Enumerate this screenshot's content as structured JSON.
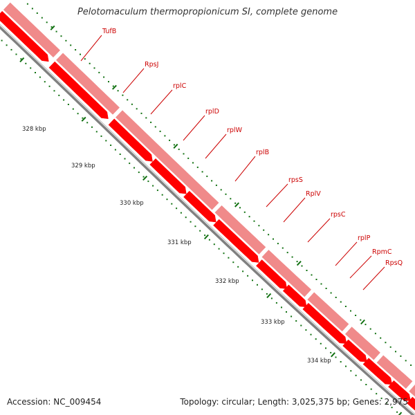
{
  "title": "Pelotomaculum thermopropionicum SI, complete genome",
  "footer": {
    "accession": "Accession: NC_009454",
    "summary": "Topology: circular; Length: 3,025,375 bp; Genes: 2,975"
  },
  "colors": {
    "gene_dark": "#ff0000",
    "gene_light": "#f08a8a",
    "label": "#cc0000",
    "backbone": "#808080",
    "tick": "#107010"
  },
  "genes": [
    {
      "name": "TufB"
    },
    {
      "name": "RpsJ"
    },
    {
      "name": "rplC"
    },
    {
      "name": "rplD"
    },
    {
      "name": "rplW"
    },
    {
      "name": "rplB"
    },
    {
      "name": "rpsS"
    },
    {
      "name": "RplV"
    },
    {
      "name": "rpsC"
    },
    {
      "name": "rplP"
    },
    {
      "name": "RpmC"
    },
    {
      "name": "RpsQ"
    }
  ],
  "kbp_marks": [
    "328 kbp",
    "329 kbp",
    "330 kbp",
    "331 kbp",
    "332 kbp",
    "333 kbp",
    "334 kbp"
  ]
}
